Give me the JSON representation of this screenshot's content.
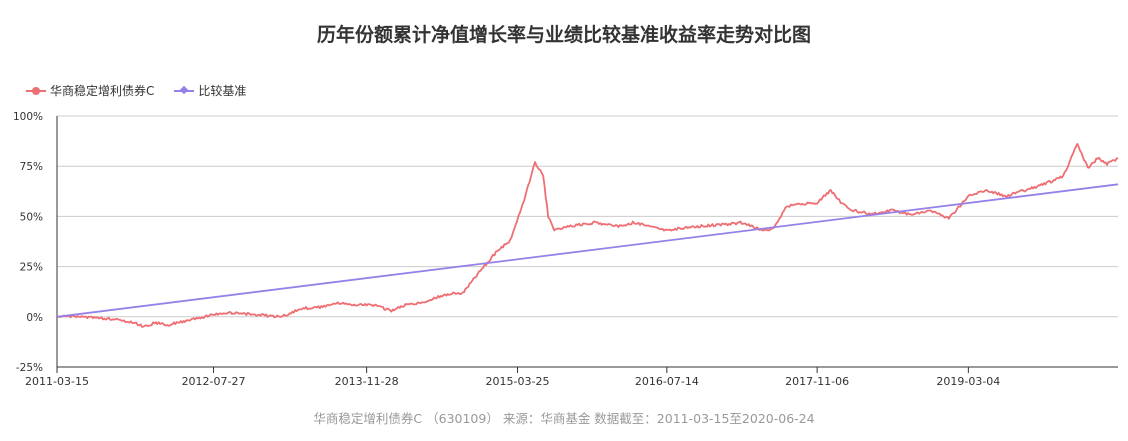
{
  "title": "历年份额累计净值增长率与业绩比较基准收益率走势对比图",
  "legend": [
    {
      "label": "华商稳定增利债券C",
      "color": "#ee6f73"
    },
    {
      "label": "比较基准",
      "color": "#9680ea"
    }
  ],
  "footer": "华商稳定增利债券C （630109） 来源：华商基金 数据截至：2011-03-15至2020-06-24",
  "chart_data": {
    "type": "line",
    "title": "历年份额累计净值增长率与业绩比较基准收益率走势对比图",
    "xlabel": "",
    "ylabel": "",
    "x_range": [
      "2011-03-15",
      "2020-06-24"
    ],
    "x_tick_labels": [
      "2011-03-15",
      "2012-07-27",
      "2013-11-28",
      "2015-03-25",
      "2016-07-14",
      "2017-11-06",
      "2019-03-04"
    ],
    "y_tick_labels": [
      "-25%",
      "0%",
      "25%",
      "50%",
      "75%",
      "100%"
    ],
    "ylim": [
      -25,
      100
    ],
    "grid": true,
    "legend_position": "top-left",
    "series": [
      {
        "name": "华商稳定增利债券C",
        "color": "#ee6f73",
        "points": [
          [
            "2011-03-15",
            0
          ],
          [
            "2011-06-15",
            0
          ],
          [
            "2011-09-01",
            -1
          ],
          [
            "2011-11-15",
            -3
          ],
          [
            "2011-12-20",
            -5
          ],
          [
            "2012-01-20",
            -3
          ],
          [
            "2012-03-01",
            -4
          ],
          [
            "2012-05-01",
            -2
          ],
          [
            "2012-07-27",
            1
          ],
          [
            "2012-09-15",
            2
          ],
          [
            "2012-12-15",
            1
          ],
          [
            "2013-03-01",
            0
          ],
          [
            "2013-05-01",
            4
          ],
          [
            "2013-07-15",
            5
          ],
          [
            "2013-09-01",
            7
          ],
          [
            "2013-10-15",
            6
          ],
          [
            "2013-12-15",
            6
          ],
          [
            "2014-02-15",
            3
          ],
          [
            "2014-04-01",
            6
          ],
          [
            "2014-06-01",
            7
          ],
          [
            "2014-08-01",
            11
          ],
          [
            "2014-10-01",
            12
          ],
          [
            "2014-12-01",
            24
          ],
          [
            "2015-01-15",
            32
          ],
          [
            "2015-03-01",
            38
          ],
          [
            "2015-04-15",
            58
          ],
          [
            "2015-05-20",
            77
          ],
          [
            "2015-06-15",
            70
          ],
          [
            "2015-07-01",
            50
          ],
          [
            "2015-07-20",
            43
          ],
          [
            "2015-09-01",
            45
          ],
          [
            "2015-12-01",
            47
          ],
          [
            "2016-02-01",
            45
          ],
          [
            "2016-04-01",
            47
          ],
          [
            "2016-07-14",
            43
          ],
          [
            "2016-10-15",
            45
          ],
          [
            "2017-01-15",
            46
          ],
          [
            "2017-03-15",
            47
          ],
          [
            "2017-05-15",
            43
          ],
          [
            "2017-06-20",
            44
          ],
          [
            "2017-08-01",
            55
          ],
          [
            "2017-09-15",
            56
          ],
          [
            "2017-11-06",
            57
          ],
          [
            "2017-12-20",
            63
          ],
          [
            "2018-01-20",
            57
          ],
          [
            "2018-03-01",
            53
          ],
          [
            "2018-05-01",
            51
          ],
          [
            "2018-07-01",
            53
          ],
          [
            "2018-09-01",
            51
          ],
          [
            "2018-11-01",
            53
          ],
          [
            "2019-01-01",
            49
          ],
          [
            "2019-03-04",
            60
          ],
          [
            "2019-05-01",
            63
          ],
          [
            "2019-07-01",
            60
          ],
          [
            "2019-09-01",
            63
          ],
          [
            "2019-11-01",
            66
          ],
          [
            "2020-01-01",
            70
          ],
          [
            "2020-02-15",
            86
          ],
          [
            "2020-03-20",
            74
          ],
          [
            "2020-04-20",
            79
          ],
          [
            "2020-05-20",
            76
          ],
          [
            "2020-06-24",
            79
          ]
        ]
      },
      {
        "name": "比较基准",
        "color": "#9680ea",
        "points": [
          [
            "2011-03-15",
            0
          ],
          [
            "2020-06-24",
            66
          ]
        ]
      }
    ]
  }
}
